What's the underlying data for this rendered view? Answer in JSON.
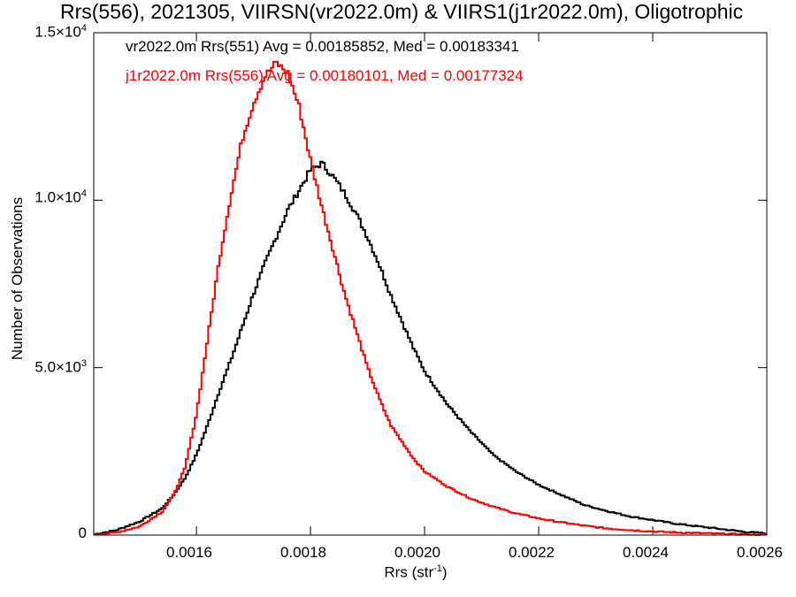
{
  "chart_data": {
    "type": "line",
    "title": "Rrs(556), 2021305, VIIRSN(vr2022.0m) & VIIRS1(j1r2022.0m), Oligotrophic",
    "xlabel": "Rrs (str",
    "xlabel_sup": "-1",
    "xlabel_tail": ")",
    "ylabel": "Number of Observations",
    "xlim": [
      0.00142,
      0.0026
    ],
    "ylim": [
      0,
      15000
    ],
    "x_ticks": [
      0.0016,
      0.0018,
      0.002,
      0.0022,
      0.0024,
      0.0026
    ],
    "x_tick_labels": [
      "0.0016",
      "0.0018",
      "0.0020",
      "0.0022",
      "0.0024",
      "0.0026"
    ],
    "y_ticks": [
      0,
      5000,
      10000,
      15000
    ],
    "y_tick_labels": [
      {
        "base": "0",
        "exp": ""
      },
      {
        "base": "5.0×10",
        "exp": "3"
      },
      {
        "base": "1.0×10",
        "exp": "4"
      },
      {
        "base": "1.5×10",
        "exp": "4"
      }
    ],
    "series": [
      {
        "name": "vr2022.0m Rrs(551)",
        "legend_text": "vr2022.0m Rrs(551) Avg = 0.00185852, Med = 0.00183341",
        "color": "#000000",
        "x": [
          0.00142,
          0.00146,
          0.0015,
          0.00154,
          0.00156,
          0.00158,
          0.0016,
          0.00162,
          0.00164,
          0.00166,
          0.00168,
          0.0017,
          0.00172,
          0.00174,
          0.00176,
          0.00178,
          0.0018,
          0.00182,
          0.00184,
          0.00186,
          0.00188,
          0.0019,
          0.00192,
          0.00194,
          0.00196,
          0.00198,
          0.002,
          0.00204,
          0.00208,
          0.00212,
          0.00216,
          0.0022,
          0.00224,
          0.00228,
          0.00232,
          0.00236,
          0.0024,
          0.00244,
          0.00248,
          0.00252,
          0.00256,
          0.0026
        ],
        "y": [
          20,
          150,
          400,
          800,
          1200,
          1700,
          2400,
          3300,
          4300,
          5200,
          6200,
          7200,
          8100,
          8900,
          9700,
          10300,
          10900,
          11100,
          10700,
          10200,
          9600,
          8900,
          8100,
          7200,
          6400,
          5600,
          4900,
          3900,
          3100,
          2400,
          1900,
          1500,
          1200,
          900,
          720,
          560,
          450,
          340,
          260,
          180,
          100,
          50
        ]
      },
      {
        "name": "j1r2022.0m Rrs(556)",
        "legend_text": "j1r2022.0m Rrs(556) Avg = 0.00180101, Med = 0.00177324",
        "color": "#ff0000",
        "x": [
          0.00142,
          0.00146,
          0.0015,
          0.00154,
          0.00156,
          0.00158,
          0.0016,
          0.00162,
          0.00164,
          0.00166,
          0.00168,
          0.0017,
          0.00172,
          0.00174,
          0.00176,
          0.00178,
          0.0018,
          0.00182,
          0.00184,
          0.00186,
          0.00188,
          0.0019,
          0.00192,
          0.00194,
          0.00196,
          0.00198,
          0.002,
          0.00204,
          0.00208,
          0.00212,
          0.00216,
          0.0022,
          0.00224,
          0.00228,
          0.00232,
          0.00236,
          0.0024,
          0.00244,
          0.00248,
          0.00252,
          0.00256,
          0.0026
        ],
        "y": [
          10,
          80,
          250,
          700,
          1200,
          2000,
          3600,
          5900,
          8200,
          10100,
          11800,
          12900,
          13700,
          14100,
          13800,
          12800,
          11200,
          9800,
          8500,
          7200,
          6100,
          5000,
          4100,
          3300,
          2800,
          2300,
          1900,
          1450,
          1100,
          850,
          650,
          500,
          380,
          280,
          200,
          150,
          110,
          80,
          60,
          40,
          25,
          15
        ]
      }
    ]
  }
}
